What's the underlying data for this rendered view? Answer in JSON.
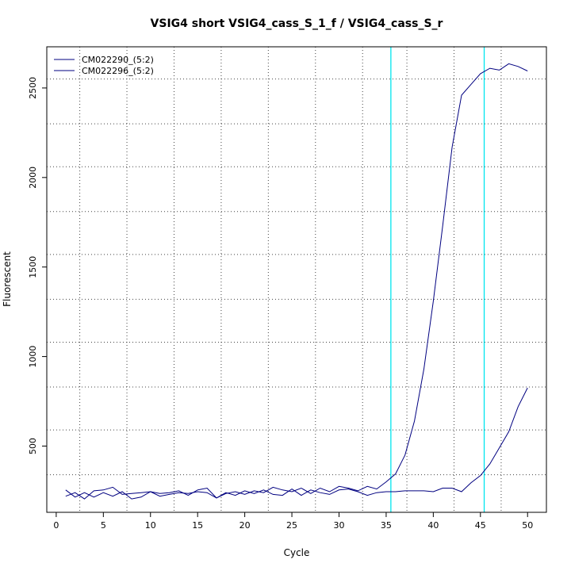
{
  "chart_data": {
    "type": "line",
    "title": "VSIG4 short VSIG4_cass_S_1_f / VSIG4_cass_S_r",
    "xlabel": "Cycle",
    "ylabel": "Fluorescent",
    "xlim": [
      -1.0,
      52.0
    ],
    "ylim": [
      130,
      2730
    ],
    "xticks": [
      0,
      5,
      10,
      15,
      20,
      25,
      30,
      35,
      40,
      45,
      50
    ],
    "yticks": [
      500,
      1000,
      1500,
      2000,
      2500
    ],
    "x_gridlines": [
      2.5,
      7.5,
      12.5,
      17.5,
      22.5,
      27.5,
      32.5,
      37.2,
      42.2,
      47.2
    ],
    "y_gridlines": [
      340,
      590,
      830,
      1080,
      1320,
      1570,
      1810,
      2060,
      2300,
      2550
    ],
    "threshold_lines": [
      35.5,
      45.4
    ],
    "threshold_color": "#00e5ee",
    "grid": true,
    "legend_position": "top-left",
    "series": [
      {
        "name": "CM022290_(5:2)",
        "color": "#000080",
        "x": [
          1,
          2,
          3,
          4,
          5,
          6,
          7,
          8,
          9,
          10,
          11,
          12,
          13,
          14,
          15,
          16,
          17,
          18,
          19,
          20,
          21,
          22,
          23,
          24,
          25,
          26,
          27,
          28,
          29,
          30,
          31,
          32,
          33,
          34,
          35,
          36,
          37,
          38,
          39,
          40,
          41,
          42,
          43,
          44,
          45,
          46,
          47,
          48,
          49,
          50
        ],
        "values": [
          220,
          240,
          205,
          250,
          255,
          270,
          230,
          235,
          240,
          245,
          235,
          240,
          250,
          225,
          255,
          265,
          210,
          235,
          245,
          230,
          250,
          240,
          270,
          255,
          245,
          265,
          235,
          265,
          245,
          275,
          265,
          250,
          275,
          260,
          300,
          345,
          450,
          640,
          930,
          1310,
          1730,
          2170,
          2460,
          2520,
          2580,
          2610,
          2600,
          2635,
          2620,
          2595
        ]
      },
      {
        "name": "CM022296_(5:2)",
        "color": "#000080",
        "x": [
          1,
          2,
          3,
          4,
          5,
          6,
          7,
          8,
          9,
          10,
          11,
          12,
          13,
          14,
          15,
          16,
          17,
          18,
          19,
          20,
          21,
          22,
          23,
          24,
          25,
          26,
          27,
          28,
          29,
          30,
          31,
          32,
          33,
          34,
          35,
          36,
          37,
          38,
          39,
          40,
          41,
          42,
          43,
          44,
          45,
          46,
          47,
          48,
          49,
          50
        ],
        "values": [
          255,
          215,
          240,
          215,
          240,
          220,
          245,
          205,
          215,
          245,
          220,
          230,
          240,
          235,
          245,
          240,
          210,
          240,
          225,
          250,
          235,
          255,
          230,
          225,
          260,
          225,
          255,
          240,
          230,
          255,
          260,
          245,
          225,
          240,
          245,
          245,
          250,
          250,
          250,
          245,
          265,
          265,
          245,
          295,
          335,
          400,
          490,
          580,
          720,
          825
        ]
      }
    ]
  }
}
